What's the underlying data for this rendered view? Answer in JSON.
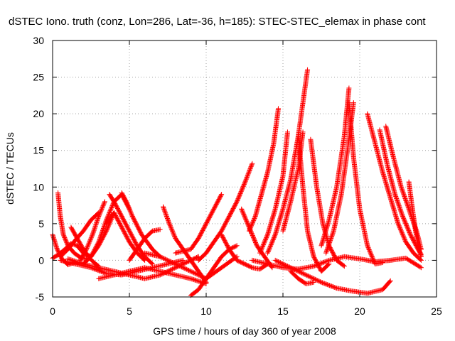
{
  "chart_data": {
    "type": "scatter",
    "title": "dSTEC Iono. truth (conz, Lon=286, Lat=-36, h=185): STEC-STEC_elemax in phase cont",
    "xlabel": "GPS time / hours of day 360 of year 2008",
    "ylabel": "dSTEC  / TECUs",
    "xlim": [
      0,
      25
    ],
    "ylim": [
      -5,
      30
    ],
    "xticks": [
      0,
      5,
      10,
      15,
      20,
      25
    ],
    "yticks": [
      -5,
      0,
      5,
      10,
      15,
      20,
      25,
      30
    ],
    "grid": true,
    "marker": "+",
    "color": "#ff0000",
    "series": [
      {
        "x": [
          0.0,
          0.3,
          0.6,
          1.0,
          1.4
        ],
        "y": [
          3.5,
          1.5,
          0.2,
          -0.6,
          -0.3
        ]
      },
      {
        "x": [
          0.0,
          0.4,
          0.8,
          1.2,
          1.6,
          2.0,
          2.5
        ],
        "y": [
          0.3,
          0.8,
          1.5,
          2.3,
          2.0,
          1.0,
          0.5
        ]
      },
      {
        "x": [
          0.35,
          0.5,
          0.7,
          1.0,
          1.4,
          1.8,
          2.2
        ],
        "y": [
          9.2,
          6.0,
          3.5,
          2.0,
          1.0,
          0.4,
          0.2
        ]
      },
      {
        "x": [
          0.5,
          1.0,
          1.5,
          2.0,
          2.5,
          3.0
        ],
        "y": [
          0.5,
          1.5,
          2.8,
          4.0,
          5.5,
          6.5
        ]
      },
      {
        "x": [
          1.2,
          1.6,
          2.0,
          2.4,
          2.8,
          3.0
        ],
        "y": [
          4.5,
          3.0,
          1.5,
          0.3,
          -0.5,
          -0.8
        ]
      },
      {
        "x": [
          1.8,
          2.2,
          2.6,
          3.0,
          3.4
        ],
        "y": [
          0.0,
          1.5,
          3.5,
          6.0,
          8.0
        ]
      },
      {
        "x": [
          2.0,
          2.5,
          3.0,
          3.5,
          4.0
        ],
        "y": [
          -0.5,
          0.5,
          2.0,
          4.0,
          6.5
        ]
      },
      {
        "x": [
          2.5,
          3.0,
          3.5,
          4.0,
          4.5,
          5.0
        ],
        "y": [
          0.5,
          2.5,
          5.5,
          8.0,
          9.0,
          7.0
        ]
      },
      {
        "x": [
          3.5,
          4.0,
          4.5,
          5.0,
          5.5,
          6.0
        ],
        "y": [
          5.0,
          6.5,
          4.5,
          2.5,
          1.0,
          0.0
        ]
      },
      {
        "x": [
          3.7,
          4.0,
          4.5,
          5.0,
          5.5,
          6.0,
          6.5
        ],
        "y": [
          9.0,
          8.0,
          6.0,
          4.0,
          2.0,
          0.5,
          -0.5
        ]
      },
      {
        "x": [
          4.5,
          4.8,
          5.2,
          5.8,
          6.5,
          7.0
        ],
        "y": [
          9.2,
          8.0,
          6.0,
          3.5,
          1.5,
          0.5
        ]
      },
      {
        "x": [
          0.5,
          1.5,
          2.5,
          3.5,
          4.5,
          5.5,
          6.5,
          7.5,
          8.5
        ],
        "y": [
          0.0,
          -0.5,
          -1.0,
          -1.8,
          -2.0,
          -1.5,
          -1.0,
          -0.5,
          0.0
        ]
      },
      {
        "x": [
          1.0,
          2.0,
          3.0,
          4.0,
          5.0,
          6.0,
          7.0,
          8.0,
          9.0,
          9.5
        ],
        "y": [
          0.2,
          -0.5,
          -1.0,
          -1.5,
          -2.0,
          -2.5,
          -2.0,
          -1.0,
          0.0,
          0.5
        ]
      },
      {
        "x": [
          3.0,
          4.0,
          5.0,
          6.0,
          7.0,
          8.0,
          9.0,
          10.0
        ],
        "y": [
          -2.5,
          -2.0,
          -1.5,
          -1.0,
          -1.5,
          -2.0,
          -2.5,
          -3.2
        ]
      },
      {
        "x": [
          5.0,
          5.5,
          6.0,
          6.5,
          7.0
        ],
        "y": [
          0.0,
          1.5,
          3.0,
          4.0,
          4.2
        ]
      },
      {
        "x": [
          6.0,
          7.0,
          8.0,
          9.0,
          10.0,
          11.0,
          12.0
        ],
        "y": [
          1.0,
          0.5,
          -0.5,
          -1.5,
          -2.5,
          -1.0,
          0.5
        ]
      },
      {
        "x": [
          7.2,
          7.6,
          8.0,
          8.5,
          9.0,
          9.5,
          10.0
        ],
        "y": [
          7.3,
          5.0,
          3.0,
          1.5,
          0.0,
          -1.5,
          -3.0
        ]
      },
      {
        "x": [
          9.0,
          9.5,
          10.0,
          10.5,
          11.0,
          11.5,
          12.0
        ],
        "y": [
          -4.8,
          -4.0,
          -2.5,
          -1.0,
          0.5,
          1.5,
          2.0
        ]
      },
      {
        "x": [
          8.0,
          9.0,
          9.5,
          10.0,
          10.5,
          11.0
        ],
        "y": [
          1.0,
          1.5,
          3.0,
          5.0,
          7.0,
          9.0
        ]
      },
      {
        "x": [
          9.5,
          10.0,
          10.5,
          11.0,
          11.5,
          12.0,
          12.5,
          13.0
        ],
        "y": [
          0.0,
          1.0,
          2.5,
          4.0,
          6.0,
          8.0,
          10.5,
          13.2
        ]
      },
      {
        "x": [
          11.0,
          11.5,
          12.0,
          12.5,
          13.0,
          13.5,
          14.0
        ],
        "y": [
          3.5,
          1.5,
          0.0,
          -0.5,
          -1.0,
          -1.2,
          -0.5
        ]
      },
      {
        "x": [
          12.3,
          12.8,
          13.3,
          13.8,
          14.3
        ],
        "y": [
          7.0,
          4.5,
          2.0,
          0.5,
          -1.0
        ]
      },
      {
        "x": [
          12.8,
          13.2,
          13.6,
          14.0,
          14.4,
          14.7
        ],
        "y": [
          4.0,
          6.0,
          9.0,
          12.0,
          16.0,
          20.7
        ]
      },
      {
        "x": [
          13.5,
          14.0,
          14.5,
          15.0,
          15.3
        ],
        "y": [
          1.0,
          3.5,
          7.0,
          11.5,
          17.5
        ]
      },
      {
        "x": [
          14.0,
          14.5,
          15.0,
          15.5,
          16.0,
          16.6
        ],
        "y": [
          1.0,
          3.5,
          7.0,
          11.0,
          17.0,
          26.0
        ]
      },
      {
        "x": [
          15.0,
          15.5,
          16.0,
          16.3
        ],
        "y": [
          4.0,
          8.0,
          12.5,
          17.5
        ]
      },
      {
        "x": [
          16.0,
          16.3,
          16.6,
          17.0,
          17.5,
          18.0
        ],
        "y": [
          17.0,
          10.0,
          4.0,
          0.5,
          -1.5,
          -0.5
        ]
      },
      {
        "x": [
          16.8,
          17.2,
          17.6,
          18.0,
          18.5,
          19.0
        ],
        "y": [
          16.5,
          10.0,
          5.0,
          2.0,
          0.0,
          -0.8
        ]
      },
      {
        "x": [
          17.5,
          18.0,
          18.5,
          19.0,
          19.3
        ],
        "y": [
          2.0,
          5.5,
          10.0,
          17.0,
          23.5
        ]
      },
      {
        "x": [
          17.8,
          18.3,
          18.8,
          19.2,
          19.6
        ],
        "y": [
          1.0,
          4.0,
          9.0,
          15.0,
          21.5
        ]
      },
      {
        "x": [
          19.3,
          19.6,
          20.0,
          20.5,
          21.0,
          21.5
        ],
        "y": [
          21.5,
          14.0,
          7.0,
          2.0,
          -0.5,
          -0.3
        ]
      },
      {
        "x": [
          20.5,
          21.0,
          21.5,
          22.0,
          22.5,
          23.0,
          23.5,
          24.0
        ],
        "y": [
          20.0,
          16.0,
          12.0,
          8.5,
          5.0,
          2.5,
          1.0,
          0.0
        ]
      },
      {
        "x": [
          21.3,
          21.8,
          22.3,
          22.8,
          23.3,
          23.8,
          24.0
        ],
        "y": [
          17.8,
          13.0,
          9.0,
          6.0,
          3.5,
          1.5,
          0.8
        ]
      },
      {
        "x": [
          21.7,
          22.2,
          22.7,
          23.2,
          23.7,
          24.0
        ],
        "y": [
          18.3,
          14.0,
          10.0,
          7.0,
          4.0,
          1.5
        ]
      },
      {
        "x": [
          23.2,
          23.4,
          23.6,
          23.8,
          24.0
        ],
        "y": [
          10.7,
          7.5,
          4.5,
          2.0,
          0.5
        ]
      },
      {
        "x": [
          14.5,
          15.5,
          16.5,
          17.5,
          18.5,
          19.5,
          20.5,
          21.5,
          22.0
        ],
        "y": [
          0.0,
          -1.0,
          -2.0,
          -3.0,
          -3.8,
          -4.2,
          -4.5,
          -4.0,
          -2.8
        ]
      },
      {
        "x": [
          15.5,
          16.0,
          16.5,
          17.0
        ],
        "y": [
          -1.5,
          -2.5,
          -3.2,
          -3.0
        ]
      },
      {
        "x": [
          13.0,
          14.0,
          15.0,
          16.0,
          17.0,
          18.0,
          19.0,
          20.0,
          21.0,
          22.0,
          23.0,
          24.0
        ],
        "y": [
          0.0,
          -0.5,
          -1.0,
          -1.2,
          -0.8,
          0.0,
          0.5,
          0.2,
          -0.2,
          0.0,
          0.3,
          -1.0
        ]
      }
    ]
  }
}
